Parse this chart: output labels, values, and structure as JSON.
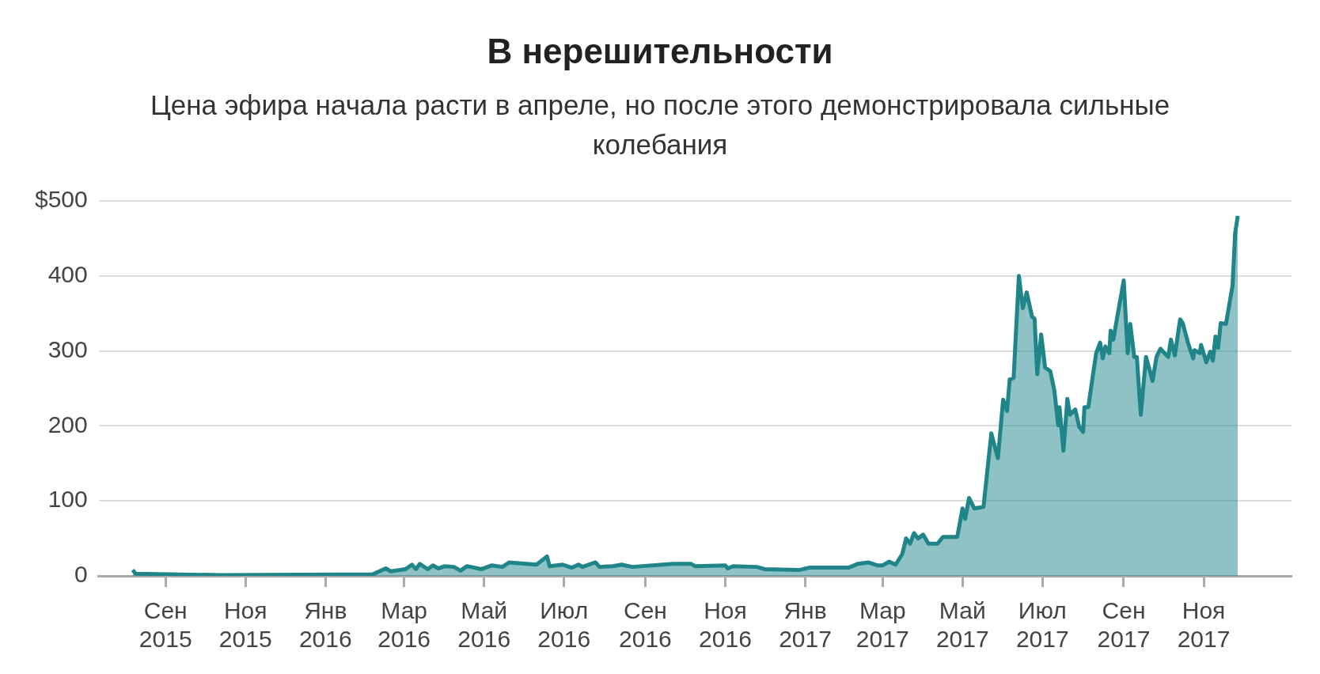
{
  "chart_data": {
    "type": "area",
    "title": "В нерешительности",
    "subtitle": "Цена эфира начала расти в апреле, но после этого демонстрировала сильные колебания",
    "series": [
      {
        "color": "#1f8589",
        "x": [
          "2015-08-07",
          "2015-08-09",
          "2015-10-14",
          "2016-02-06",
          "2016-02-16",
          "2016-02-20",
          "2016-03-02",
          "2016-03-07",
          "2016-03-10",
          "2016-03-13",
          "2016-03-19",
          "2016-03-23",
          "2016-03-27",
          "2016-04-01",
          "2016-04-08",
          "2016-04-13",
          "2016-04-18",
          "2016-04-29",
          "2016-05-07",
          "2016-05-15",
          "2016-05-20",
          "2016-06-10",
          "2016-06-18",
          "2016-06-20",
          "2016-06-30",
          "2016-07-07",
          "2016-07-12",
          "2016-07-15",
          "2016-07-25",
          "2016-07-28",
          "2016-08-07",
          "2016-08-14",
          "2016-08-22",
          "2016-09-22",
          "2016-10-06",
          "2016-10-09",
          "2016-11-01",
          "2016-11-03",
          "2016-11-07",
          "2016-11-25",
          "2016-12-01",
          "2016-12-28",
          "2017-01-04",
          "2017-02-03",
          "2017-02-10",
          "2017-02-18",
          "2017-02-25",
          "2017-03-01",
          "2017-03-06",
          "2017-03-11",
          "2017-03-16",
          "2017-03-19",
          "2017-03-22",
          "2017-03-25",
          "2017-03-28",
          "2017-04-01",
          "2017-04-05",
          "2017-04-12",
          "2017-04-16",
          "2017-04-27",
          "2017-05-01",
          "2017-05-03",
          "2017-05-06",
          "2017-05-10",
          "2017-05-17",
          "2017-05-23",
          "2017-05-28",
          "2017-06-01",
          "2017-06-04",
          "2017-06-06",
          "2017-06-09",
          "2017-06-13",
          "2017-06-16",
          "2017-06-19",
          "2017-06-23",
          "2017-06-25",
          "2017-06-27",
          "2017-06-30",
          "2017-07-03",
          "2017-07-07",
          "2017-07-10",
          "2017-07-13",
          "2017-07-14",
          "2017-07-17",
          "2017-07-20",
          "2017-07-22",
          "2017-07-26",
          "2017-07-29",
          "2017-08-01",
          "2017-08-02",
          "2017-08-05",
          "2017-08-08",
          "2017-08-11",
          "2017-08-14",
          "2017-08-16",
          "2017-08-18",
          "2017-08-21",
          "2017-08-22",
          "2017-08-24",
          "2017-09-01",
          "2017-09-04",
          "2017-09-06",
          "2017-09-09",
          "2017-09-11",
          "2017-09-14",
          "2017-09-18",
          "2017-09-23",
          "2017-09-26",
          "2017-09-29",
          "2017-10-01",
          "2017-10-05",
          "2017-10-07",
          "2017-10-10",
          "2017-10-14",
          "2017-10-16",
          "2017-10-20",
          "2017-10-24",
          "2017-10-25",
          "2017-10-29",
          "2017-10-30",
          "2017-11-03",
          "2017-11-06",
          "2017-11-08",
          "2017-11-10",
          "2017-11-12",
          "2017-11-14",
          "2017-11-18",
          "2017-11-23",
          "2017-11-25",
          "2017-11-27"
        ],
        "values": [
          8,
          3,
          1,
          2,
          10,
          6,
          9,
          15,
          9,
          16,
          9,
          14,
          10,
          13,
          12,
          7,
          13,
          9,
          14,
          12,
          18,
          15,
          26,
          13,
          15,
          11,
          15,
          12,
          18,
          12,
          13,
          15,
          12,
          16,
          16,
          13,
          14,
          10,
          13,
          12,
          9,
          8,
          11,
          11,
          16,
          18,
          14,
          14,
          19,
          15,
          29,
          50,
          43,
          57,
          50,
          55,
          43,
          43,
          52,
          52,
          90,
          76,
          104,
          90,
          92,
          190,
          157,
          235,
          220,
          262,
          264,
          400,
          357,
          378,
          346,
          343,
          269,
          322,
          278,
          273,
          248,
          201,
          225,
          167,
          236,
          215,
          222,
          199,
          192,
          225,
          225,
          262,
          297,
          311,
          290,
          306,
          297,
          327,
          315,
          394,
          297,
          336,
          292,
          292,
          215,
          292,
          260,
          292,
          303,
          299,
          292,
          315,
          294,
          342,
          337,
          311,
          290,
          301,
          297,
          308,
          285,
          299,
          287,
          319,
          304,
          337,
          336,
          387,
          457,
          480
        ]
      }
    ],
    "xlim": [
      "2015-07-12",
      "2018-01-07"
    ],
    "xticks": [
      {
        "value": "2015-09-01",
        "label": "Сен 2015"
      },
      {
        "value": "2015-11-01",
        "label": "Ноя 2015"
      },
      {
        "value": "2016-01-01",
        "label": "Янв 2016"
      },
      {
        "value": "2016-03-01",
        "label": "Мар 2016"
      },
      {
        "value": "2016-05-01",
        "label": "Май 2016"
      },
      {
        "value": "2016-07-01",
        "label": "Июл 2016"
      },
      {
        "value": "2016-09-01",
        "label": "Сен 2016"
      },
      {
        "value": "2016-11-01",
        "label": "Ноя 2016"
      },
      {
        "value": "2017-01-01",
        "label": "Янв 2017"
      },
      {
        "value": "2017-03-01",
        "label": "Мар 2017"
      },
      {
        "value": "2017-05-01",
        "label": "Май 2017"
      },
      {
        "value": "2017-07-01",
        "label": "Июл 2017"
      },
      {
        "value": "2017-09-01",
        "label": "Сен 2017"
      },
      {
        "value": "2017-11-01",
        "label": "Ноя 2017"
      }
    ],
    "ylim": [
      0,
      500
    ],
    "yticks": [
      0,
      100,
      200,
      300,
      400,
      {
        "value": 500,
        "label": "$500"
      }
    ],
    "grid": "y",
    "legend": false,
    "marker": "none",
    "line_style": "solid"
  }
}
